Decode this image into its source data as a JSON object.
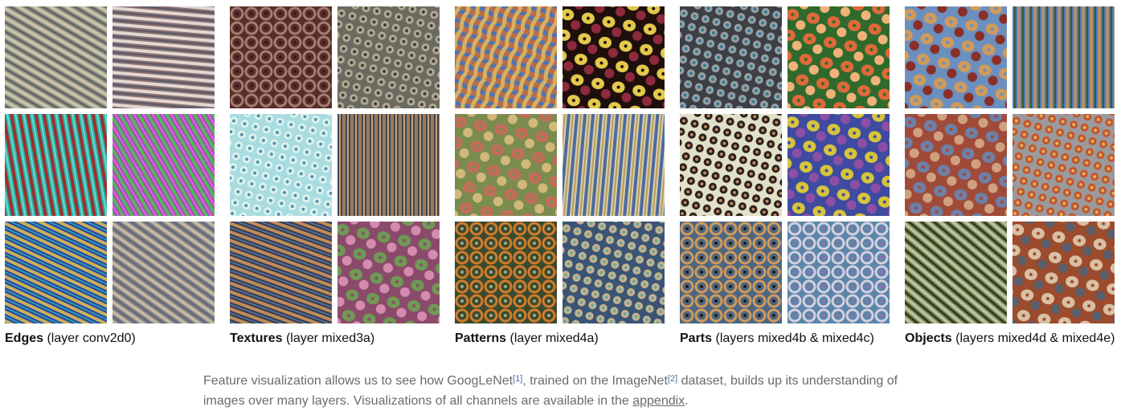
{
  "groups": [
    {
      "title": "Edges",
      "subtitle": "(layer conv2d0)",
      "tiles": [
        {
          "name": "edges-1",
          "colors": [
            "#8d8f7c",
            "#c9c3aa",
            "#5b5e63"
          ],
          "style": "stripes",
          "angle": 30
        },
        {
          "name": "edges-2",
          "colors": [
            "#8b6f72",
            "#e1d8d2",
            "#545a6a"
          ],
          "style": "stripes",
          "angle": 5
        },
        {
          "name": "edges-3",
          "colors": [
            "#27b3a5",
            "#a12e2c",
            "#6fd7d2"
          ],
          "style": "stripes",
          "angle": 80
        },
        {
          "name": "edges-4",
          "colors": [
            "#a94bbd",
            "#53b75a",
            "#e066d8"
          ],
          "style": "stripes",
          "angle": 60
        },
        {
          "name": "edges-5",
          "colors": [
            "#333fa0",
            "#c5b25a",
            "#20a0b0"
          ],
          "style": "stripes",
          "angle": 25
        },
        {
          "name": "edges-6",
          "colors": [
            "#7f7f86",
            "#c3b9a3",
            "#62687a"
          ],
          "style": "stripes",
          "angle": 35
        }
      ]
    },
    {
      "title": "Textures",
      "subtitle": "(layer mixed3a)",
      "tiles": [
        {
          "name": "textures-1",
          "colors": [
            "#5d2c26",
            "#a07e76",
            "#3a1a18"
          ],
          "style": "rings"
        },
        {
          "name": "textures-2",
          "colors": [
            "#6b6a60",
            "#b3aa94",
            "#3f3d38"
          ],
          "style": "dots"
        },
        {
          "name": "textures-3",
          "colors": [
            "#a8dce0",
            "#dff2ef",
            "#4e93a9"
          ],
          "style": "dots"
        },
        {
          "name": "textures-4",
          "colors": [
            "#3e4655",
            "#9a7a5c",
            "#c5a37c"
          ],
          "style": "stripes",
          "angle": 90
        },
        {
          "name": "textures-5",
          "colors": [
            "#2f3c56",
            "#c08b58",
            "#5b6b8a"
          ],
          "style": "stripes",
          "angle": 20
        },
        {
          "name": "textures-6",
          "colors": [
            "#8a4b6a",
            "#6f9a54",
            "#d58bb0"
          ],
          "style": "blobs"
        }
      ]
    },
    {
      "title": "Patterns",
      "subtitle": "(layer mixed4a)",
      "tiles": [
        {
          "name": "patterns-1",
          "colors": [
            "#b86f49",
            "#4e74b2",
            "#d7b061"
          ],
          "style": "weave"
        },
        {
          "name": "patterns-2",
          "colors": [
            "#1e0f0c",
            "#e4c94c",
            "#8f2a3c"
          ],
          "style": "blobs"
        },
        {
          "name": "patterns-3",
          "colors": [
            "#7a8c4e",
            "#c26d5a",
            "#d2b87a"
          ],
          "style": "blobs"
        },
        {
          "name": "patterns-4",
          "colors": [
            "#d8cfa6",
            "#4d6aa0",
            "#b89b60"
          ],
          "style": "stripes",
          "angle": 95
        },
        {
          "name": "patterns-5",
          "colors": [
            "#3b4a2d",
            "#d27c2c",
            "#99aa8a"
          ],
          "style": "rings"
        },
        {
          "name": "patterns-6",
          "colors": [
            "#3a5476",
            "#c9b38a",
            "#67a9a2"
          ],
          "style": "dots"
        }
      ]
    },
    {
      "title": "Parts",
      "subtitle": "(layers mixed4b & mixed4c)",
      "tiles": [
        {
          "name": "parts-1",
          "colors": [
            "#3c3f44",
            "#9aa0a6",
            "#2f7c91"
          ],
          "style": "dots"
        },
        {
          "name": "parts-2",
          "colors": [
            "#2f6a2c",
            "#e0693a",
            "#f1b27a"
          ],
          "style": "blobs"
        },
        {
          "name": "parts-3",
          "colors": [
            "#e1e0c9",
            "#2a1d1a",
            "#b98b5f"
          ],
          "style": "dots"
        },
        {
          "name": "parts-4",
          "colors": [
            "#3e4ba0",
            "#d7c43c",
            "#8d4fa3"
          ],
          "style": "blobs"
        },
        {
          "name": "parts-5",
          "colors": [
            "#4c6781",
            "#d19a5b",
            "#221a17"
          ],
          "style": "rings"
        },
        {
          "name": "parts-6",
          "colors": [
            "#5a86a8",
            "#d6cfe0",
            "#9a6bb0"
          ],
          "style": "rings"
        }
      ]
    },
    {
      "title": "Objects",
      "subtitle": "(layers mixed4d & mixed4e)",
      "tiles": [
        {
          "name": "objects-1",
          "colors": [
            "#6b8fbf",
            "#d09b5a",
            "#8a2f28"
          ],
          "style": "blobs"
        },
        {
          "name": "objects-2",
          "colors": [
            "#4c7ab8",
            "#b6906b",
            "#3a5a2e"
          ],
          "style": "stripes",
          "angle": 90
        },
        {
          "name": "objects-3",
          "colors": [
            "#a04a3a",
            "#6d80a6",
            "#d0a180"
          ],
          "style": "blobs"
        },
        {
          "name": "objects-4",
          "colors": [
            "#9a9a9c",
            "#c4542c",
            "#e1b25c"
          ],
          "style": "dots"
        },
        {
          "name": "objects-5",
          "colors": [
            "#6b7a42",
            "#b9c2a2",
            "#2c2a22"
          ],
          "style": "stripes",
          "angle": 40
        },
        {
          "name": "objects-6",
          "colors": [
            "#9c4b2c",
            "#d9c0a4",
            "#5c5e6a"
          ],
          "style": "blobs"
        }
      ]
    }
  ],
  "paragraph": {
    "text_1": "Feature visualization allows us to see how GoogLeNet",
    "ref_1": "[1]",
    "text_2": ", trained on the ImageNet",
    "ref_2": "[2]",
    "text_3": " dataset, builds up its understanding of images over many layers. Visualizations of all channels are available in the",
    "link": "appendix",
    "text_4": "."
  }
}
